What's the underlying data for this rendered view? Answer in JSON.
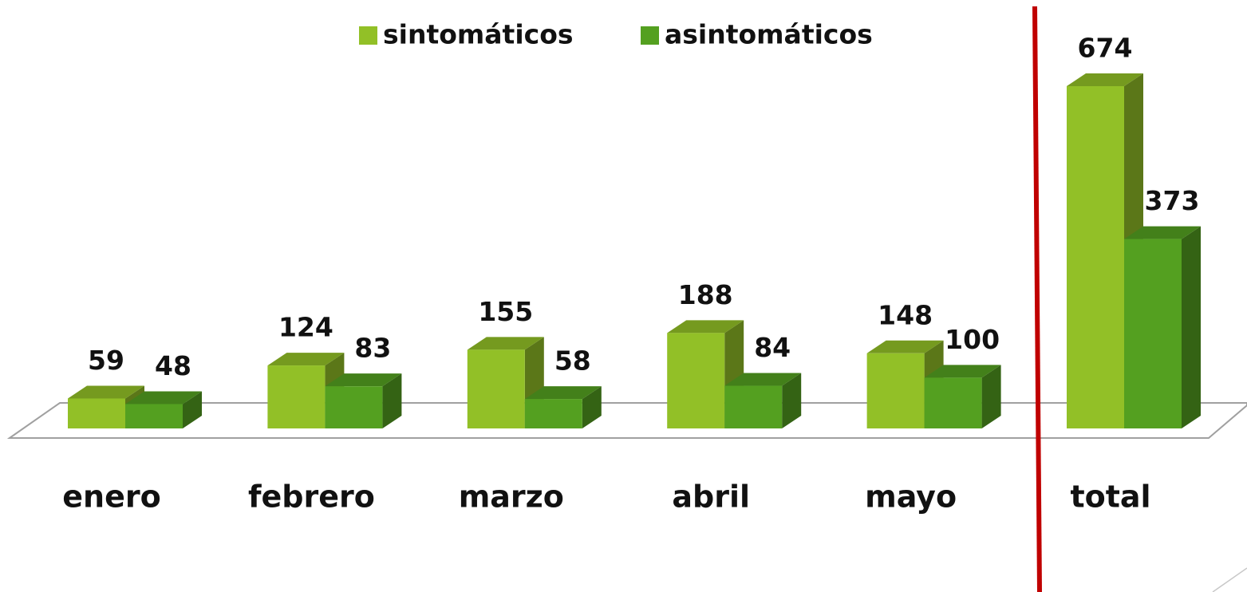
{
  "chart_data": {
    "type": "bar3d",
    "categories": [
      "enero",
      "febrero",
      "marzo",
      "abril",
      "mayo",
      "total"
    ],
    "series": [
      {
        "name": "sintomáticos",
        "color": "#92c027",
        "values": [
          59,
          124,
          155,
          188,
          148,
          674
        ]
      },
      {
        "name": "asintomáticos",
        "color": "#54a020",
        "values": [
          48,
          83,
          58,
          84,
          100,
          373
        ]
      }
    ]
  }
}
